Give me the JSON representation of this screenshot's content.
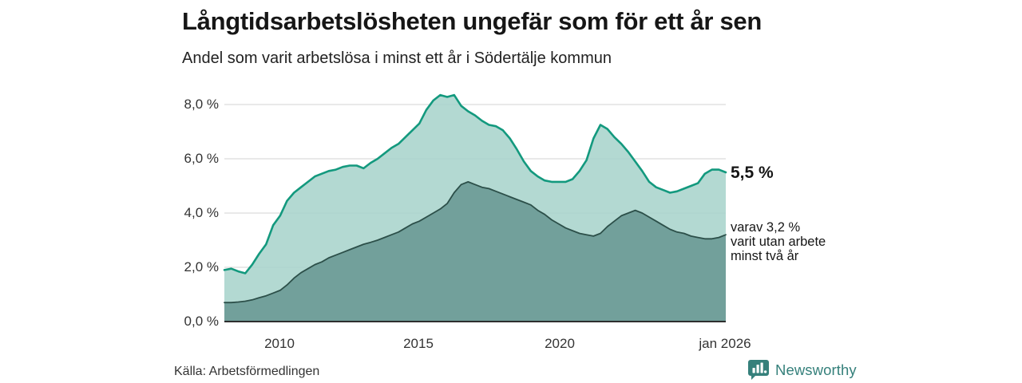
{
  "header": {
    "title": "Långtidsarbetslösheten ungefär som för ett år sen",
    "subtitle": "Andel som varit arbetslösa i minst ett år i Södertälje kommun"
  },
  "annotations": {
    "total_end_value": "5,5 %",
    "two_years_lines": [
      "varav 3,2 %",
      "varit utan arbete",
      "minst två år"
    ]
  },
  "footer": {
    "source": "Källa: Arbetsförmedlingen",
    "brand_name": "Newsworthy"
  },
  "colors": {
    "line_total": "#13997e",
    "fill_total": "#a9d4cc",
    "line_two_years": "#2c4f49",
    "fill_two_years": "#6f9d98",
    "gridline": "#dcdcdc",
    "baseline": "#2e2e2e",
    "brand_teal": "#35807b",
    "text_dark": "#161616",
    "text_axis": "#333333"
  },
  "chart_data": {
    "type": "area",
    "title": "Långtidsarbetslösheten ungefär som för ett år sen",
    "subtitle": "Andel som varit arbetslösa i minst ett år i Södertälje kommun",
    "legend_position": "right-edge-labels",
    "grid": true,
    "x_axis": {
      "ticks": [
        "2010",
        "2015",
        "2020",
        "jan 2026"
      ],
      "tick_years": [
        2010,
        2015,
        2020,
        2026
      ],
      "range_years": [
        2008,
        2026
      ]
    },
    "y_axis": {
      "ticks": [
        "0,0 %",
        "2,0 %",
        "4,0 %",
        "6,0 %",
        "8,0 %"
      ],
      "tick_values": [
        0,
        2,
        4,
        6,
        8
      ],
      "ylim": [
        0,
        8.6
      ]
    },
    "series": [
      {
        "name": "Andel som varit arbetslösa i minst ett år",
        "end_label": "5,5 %",
        "end_value": 5.5,
        "line_color": "#13997e",
        "fill_color": "#a9d4cc",
        "points": [
          [
            2008.0,
            1.9
          ],
          [
            2008.25,
            1.95
          ],
          [
            2008.5,
            1.85
          ],
          [
            2008.75,
            1.78
          ],
          [
            2009.0,
            2.1
          ],
          [
            2009.25,
            2.5
          ],
          [
            2009.5,
            2.85
          ],
          [
            2009.75,
            3.55
          ],
          [
            2010.0,
            3.9
          ],
          [
            2010.25,
            4.45
          ],
          [
            2010.5,
            4.75
          ],
          [
            2010.75,
            4.95
          ],
          [
            2011.0,
            5.15
          ],
          [
            2011.25,
            5.35
          ],
          [
            2011.5,
            5.45
          ],
          [
            2011.75,
            5.55
          ],
          [
            2012.0,
            5.6
          ],
          [
            2012.25,
            5.7
          ],
          [
            2012.5,
            5.75
          ],
          [
            2012.75,
            5.75
          ],
          [
            2013.0,
            5.65
          ],
          [
            2013.25,
            5.85
          ],
          [
            2013.5,
            6.0
          ],
          [
            2013.75,
            6.2
          ],
          [
            2014.0,
            6.4
          ],
          [
            2014.25,
            6.55
          ],
          [
            2014.5,
            6.8
          ],
          [
            2014.75,
            7.05
          ],
          [
            2015.0,
            7.3
          ],
          [
            2015.25,
            7.8
          ],
          [
            2015.5,
            8.15
          ],
          [
            2015.75,
            8.35
          ],
          [
            2016.0,
            8.28
          ],
          [
            2016.25,
            8.35
          ],
          [
            2016.5,
            7.95
          ],
          [
            2016.75,
            7.75
          ],
          [
            2017.0,
            7.6
          ],
          [
            2017.25,
            7.4
          ],
          [
            2017.5,
            7.25
          ],
          [
            2017.75,
            7.2
          ],
          [
            2018.0,
            7.05
          ],
          [
            2018.25,
            6.75
          ],
          [
            2018.5,
            6.35
          ],
          [
            2018.75,
            5.9
          ],
          [
            2019.0,
            5.55
          ],
          [
            2019.25,
            5.35
          ],
          [
            2019.5,
            5.2
          ],
          [
            2019.75,
            5.15
          ],
          [
            2020.0,
            5.15
          ],
          [
            2020.25,
            5.15
          ],
          [
            2020.5,
            5.25
          ],
          [
            2020.75,
            5.55
          ],
          [
            2021.0,
            5.95
          ],
          [
            2021.25,
            6.75
          ],
          [
            2021.5,
            7.25
          ],
          [
            2021.75,
            7.1
          ],
          [
            2022.0,
            6.8
          ],
          [
            2022.25,
            6.55
          ],
          [
            2022.5,
            6.25
          ],
          [
            2022.75,
            5.9
          ],
          [
            2023.0,
            5.55
          ],
          [
            2023.25,
            5.15
          ],
          [
            2023.5,
            4.95
          ],
          [
            2023.75,
            4.85
          ],
          [
            2024.0,
            4.75
          ],
          [
            2024.25,
            4.8
          ],
          [
            2024.5,
            4.9
          ],
          [
            2024.75,
            5.0
          ],
          [
            2025.0,
            5.1
          ],
          [
            2025.25,
            5.45
          ],
          [
            2025.5,
            5.6
          ],
          [
            2025.75,
            5.6
          ],
          [
            2026.0,
            5.5
          ]
        ]
      },
      {
        "name": "varav varit utan arbete minst två år",
        "end_label": "varav 3,2 % varit utan arbete minst två år",
        "end_value": 3.2,
        "line_color": "#2c4f49",
        "fill_color": "#6f9d98",
        "points": [
          [
            2008.0,
            0.7
          ],
          [
            2008.25,
            0.7
          ],
          [
            2008.5,
            0.72
          ],
          [
            2008.75,
            0.75
          ],
          [
            2009.0,
            0.8
          ],
          [
            2009.25,
            0.88
          ],
          [
            2009.5,
            0.95
          ],
          [
            2009.75,
            1.05
          ],
          [
            2010.0,
            1.15
          ],
          [
            2010.25,
            1.35
          ],
          [
            2010.5,
            1.6
          ],
          [
            2010.75,
            1.8
          ],
          [
            2011.0,
            1.95
          ],
          [
            2011.25,
            2.1
          ],
          [
            2011.5,
            2.2
          ],
          [
            2011.75,
            2.35
          ],
          [
            2012.0,
            2.45
          ],
          [
            2012.25,
            2.55
          ],
          [
            2012.5,
            2.65
          ],
          [
            2012.75,
            2.75
          ],
          [
            2013.0,
            2.85
          ],
          [
            2013.25,
            2.92
          ],
          [
            2013.5,
            3.0
          ],
          [
            2013.75,
            3.1
          ],
          [
            2014.0,
            3.2
          ],
          [
            2014.25,
            3.3
          ],
          [
            2014.5,
            3.45
          ],
          [
            2014.75,
            3.6
          ],
          [
            2015.0,
            3.7
          ],
          [
            2015.25,
            3.85
          ],
          [
            2015.5,
            4.0
          ],
          [
            2015.75,
            4.15
          ],
          [
            2016.0,
            4.35
          ],
          [
            2016.25,
            4.75
          ],
          [
            2016.5,
            5.05
          ],
          [
            2016.75,
            5.15
          ],
          [
            2017.0,
            5.05
          ],
          [
            2017.25,
            4.95
          ],
          [
            2017.5,
            4.9
          ],
          [
            2017.75,
            4.8
          ],
          [
            2018.0,
            4.7
          ],
          [
            2018.25,
            4.6
          ],
          [
            2018.5,
            4.5
          ],
          [
            2018.75,
            4.4
          ],
          [
            2019.0,
            4.3
          ],
          [
            2019.25,
            4.1
          ],
          [
            2019.5,
            3.95
          ],
          [
            2019.75,
            3.75
          ],
          [
            2020.0,
            3.6
          ],
          [
            2020.25,
            3.45
          ],
          [
            2020.5,
            3.35
          ],
          [
            2020.75,
            3.25
          ],
          [
            2021.0,
            3.2
          ],
          [
            2021.25,
            3.15
          ],
          [
            2021.5,
            3.25
          ],
          [
            2021.75,
            3.5
          ],
          [
            2022.0,
            3.7
          ],
          [
            2022.25,
            3.9
          ],
          [
            2022.5,
            4.0
          ],
          [
            2022.75,
            4.1
          ],
          [
            2023.0,
            4.0
          ],
          [
            2023.25,
            3.85
          ],
          [
            2023.5,
            3.7
          ],
          [
            2023.75,
            3.55
          ],
          [
            2024.0,
            3.4
          ],
          [
            2024.25,
            3.3
          ],
          [
            2024.5,
            3.25
          ],
          [
            2024.75,
            3.15
          ],
          [
            2025.0,
            3.1
          ],
          [
            2025.25,
            3.05
          ],
          [
            2025.5,
            3.05
          ],
          [
            2025.75,
            3.1
          ],
          [
            2026.0,
            3.2
          ]
        ]
      }
    ]
  }
}
